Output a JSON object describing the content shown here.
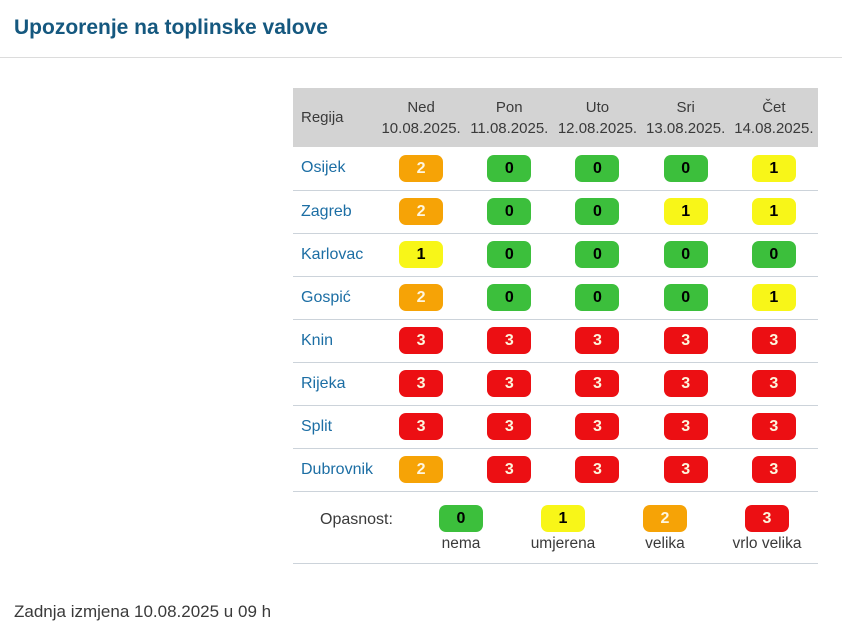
{
  "page": {
    "title": "Upozorenje na toplinske valove",
    "footer": "Zadnja izmjena 10.08.2025 u 09 h"
  },
  "table": {
    "region_header": "Regija",
    "columns": [
      {
        "day": "Ned",
        "date": "10.08.2025."
      },
      {
        "day": "Pon",
        "date": "11.08.2025."
      },
      {
        "day": "Uto",
        "date": "12.08.2025."
      },
      {
        "day": "Sri",
        "date": "13.08.2025."
      },
      {
        "day": "Čet",
        "date": "14.08.2025."
      }
    ],
    "rows": [
      {
        "region": "Osijek",
        "values": [
          2,
          0,
          0,
          0,
          1
        ]
      },
      {
        "region": "Zagreb",
        "values": [
          2,
          0,
          0,
          1,
          1
        ]
      },
      {
        "region": "Karlovac",
        "values": [
          1,
          0,
          0,
          0,
          0
        ]
      },
      {
        "region": "Gospić",
        "values": [
          2,
          0,
          0,
          0,
          1
        ]
      },
      {
        "region": "Knin",
        "values": [
          3,
          3,
          3,
          3,
          3
        ]
      },
      {
        "region": "Rijeka",
        "values": [
          3,
          3,
          3,
          3,
          3
        ]
      },
      {
        "region": "Split",
        "values": [
          3,
          3,
          3,
          3,
          3
        ]
      },
      {
        "region": "Dubrovnik",
        "values": [
          2,
          3,
          3,
          3,
          3
        ]
      }
    ]
  },
  "legend": {
    "label": "Opasnost:",
    "items": [
      {
        "value": 0,
        "label": "nema"
      },
      {
        "value": 1,
        "label": "umjerena"
      },
      {
        "value": 2,
        "label": "velika"
      },
      {
        "value": 3,
        "label": "vrlo velika"
      }
    ]
  },
  "levels": {
    "0": {
      "bg": "#3cbf3c",
      "fg": "#000000"
    },
    "1": {
      "bg": "#f8f618",
      "fg": "#000000"
    },
    "2": {
      "bg": "#f6a306",
      "fg": "#fef6e0"
    },
    "3": {
      "bg": "#ec0f13",
      "fg": "#fdf5dd"
    }
  },
  "colors": {
    "title_color": "#15587f",
    "link_color": "#1c6ea4",
    "header_bg": "#d3d3d3",
    "divider_color": "#dcdcdc",
    "row_border": "#ccd3da",
    "text_color": "#3a3a3a"
  }
}
